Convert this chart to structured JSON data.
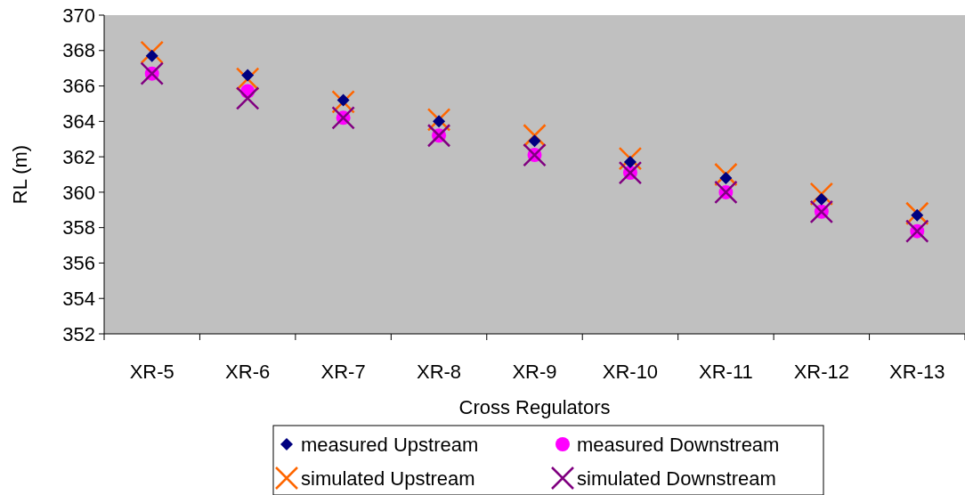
{
  "chart_data": {
    "type": "scatter",
    "xlabel": "Cross Regulators",
    "ylabel": "RL (m)",
    "categories": [
      "XR-5",
      "XR-6",
      "XR-7",
      "XR-8",
      "XR-9",
      "XR-10",
      "XR-11",
      "XR-12",
      "XR-13"
    ],
    "ylim": [
      352,
      370
    ],
    "yticks": [
      352,
      354,
      356,
      358,
      360,
      362,
      364,
      366,
      368,
      370
    ],
    "grid": false,
    "legend": "bottom",
    "series": [
      {
        "name": "measured Upstream",
        "color": "#000080",
        "marker": "diamond",
        "values": [
          367.7,
          366.6,
          365.2,
          364.0,
          362.9,
          361.7,
          360.8,
          359.6,
          358.7
        ]
      },
      {
        "name": "measured Downstream",
        "color": "#ff00ff",
        "marker": "circle",
        "values": [
          366.7,
          365.7,
          364.2,
          363.2,
          362.1,
          361.1,
          360.0,
          358.9,
          357.8
        ]
      },
      {
        "name": "simulated Upstream",
        "color": "#ff6600",
        "marker": "cross",
        "values": [
          367.9,
          366.4,
          365.1,
          364.1,
          363.2,
          361.9,
          361.0,
          359.9,
          358.8
        ]
      },
      {
        "name": "simulated Downstream",
        "color": "#800080",
        "marker": "cross",
        "values": [
          366.7,
          365.3,
          364.2,
          363.2,
          362.1,
          361.1,
          360.0,
          358.9,
          357.8
        ]
      }
    ]
  }
}
